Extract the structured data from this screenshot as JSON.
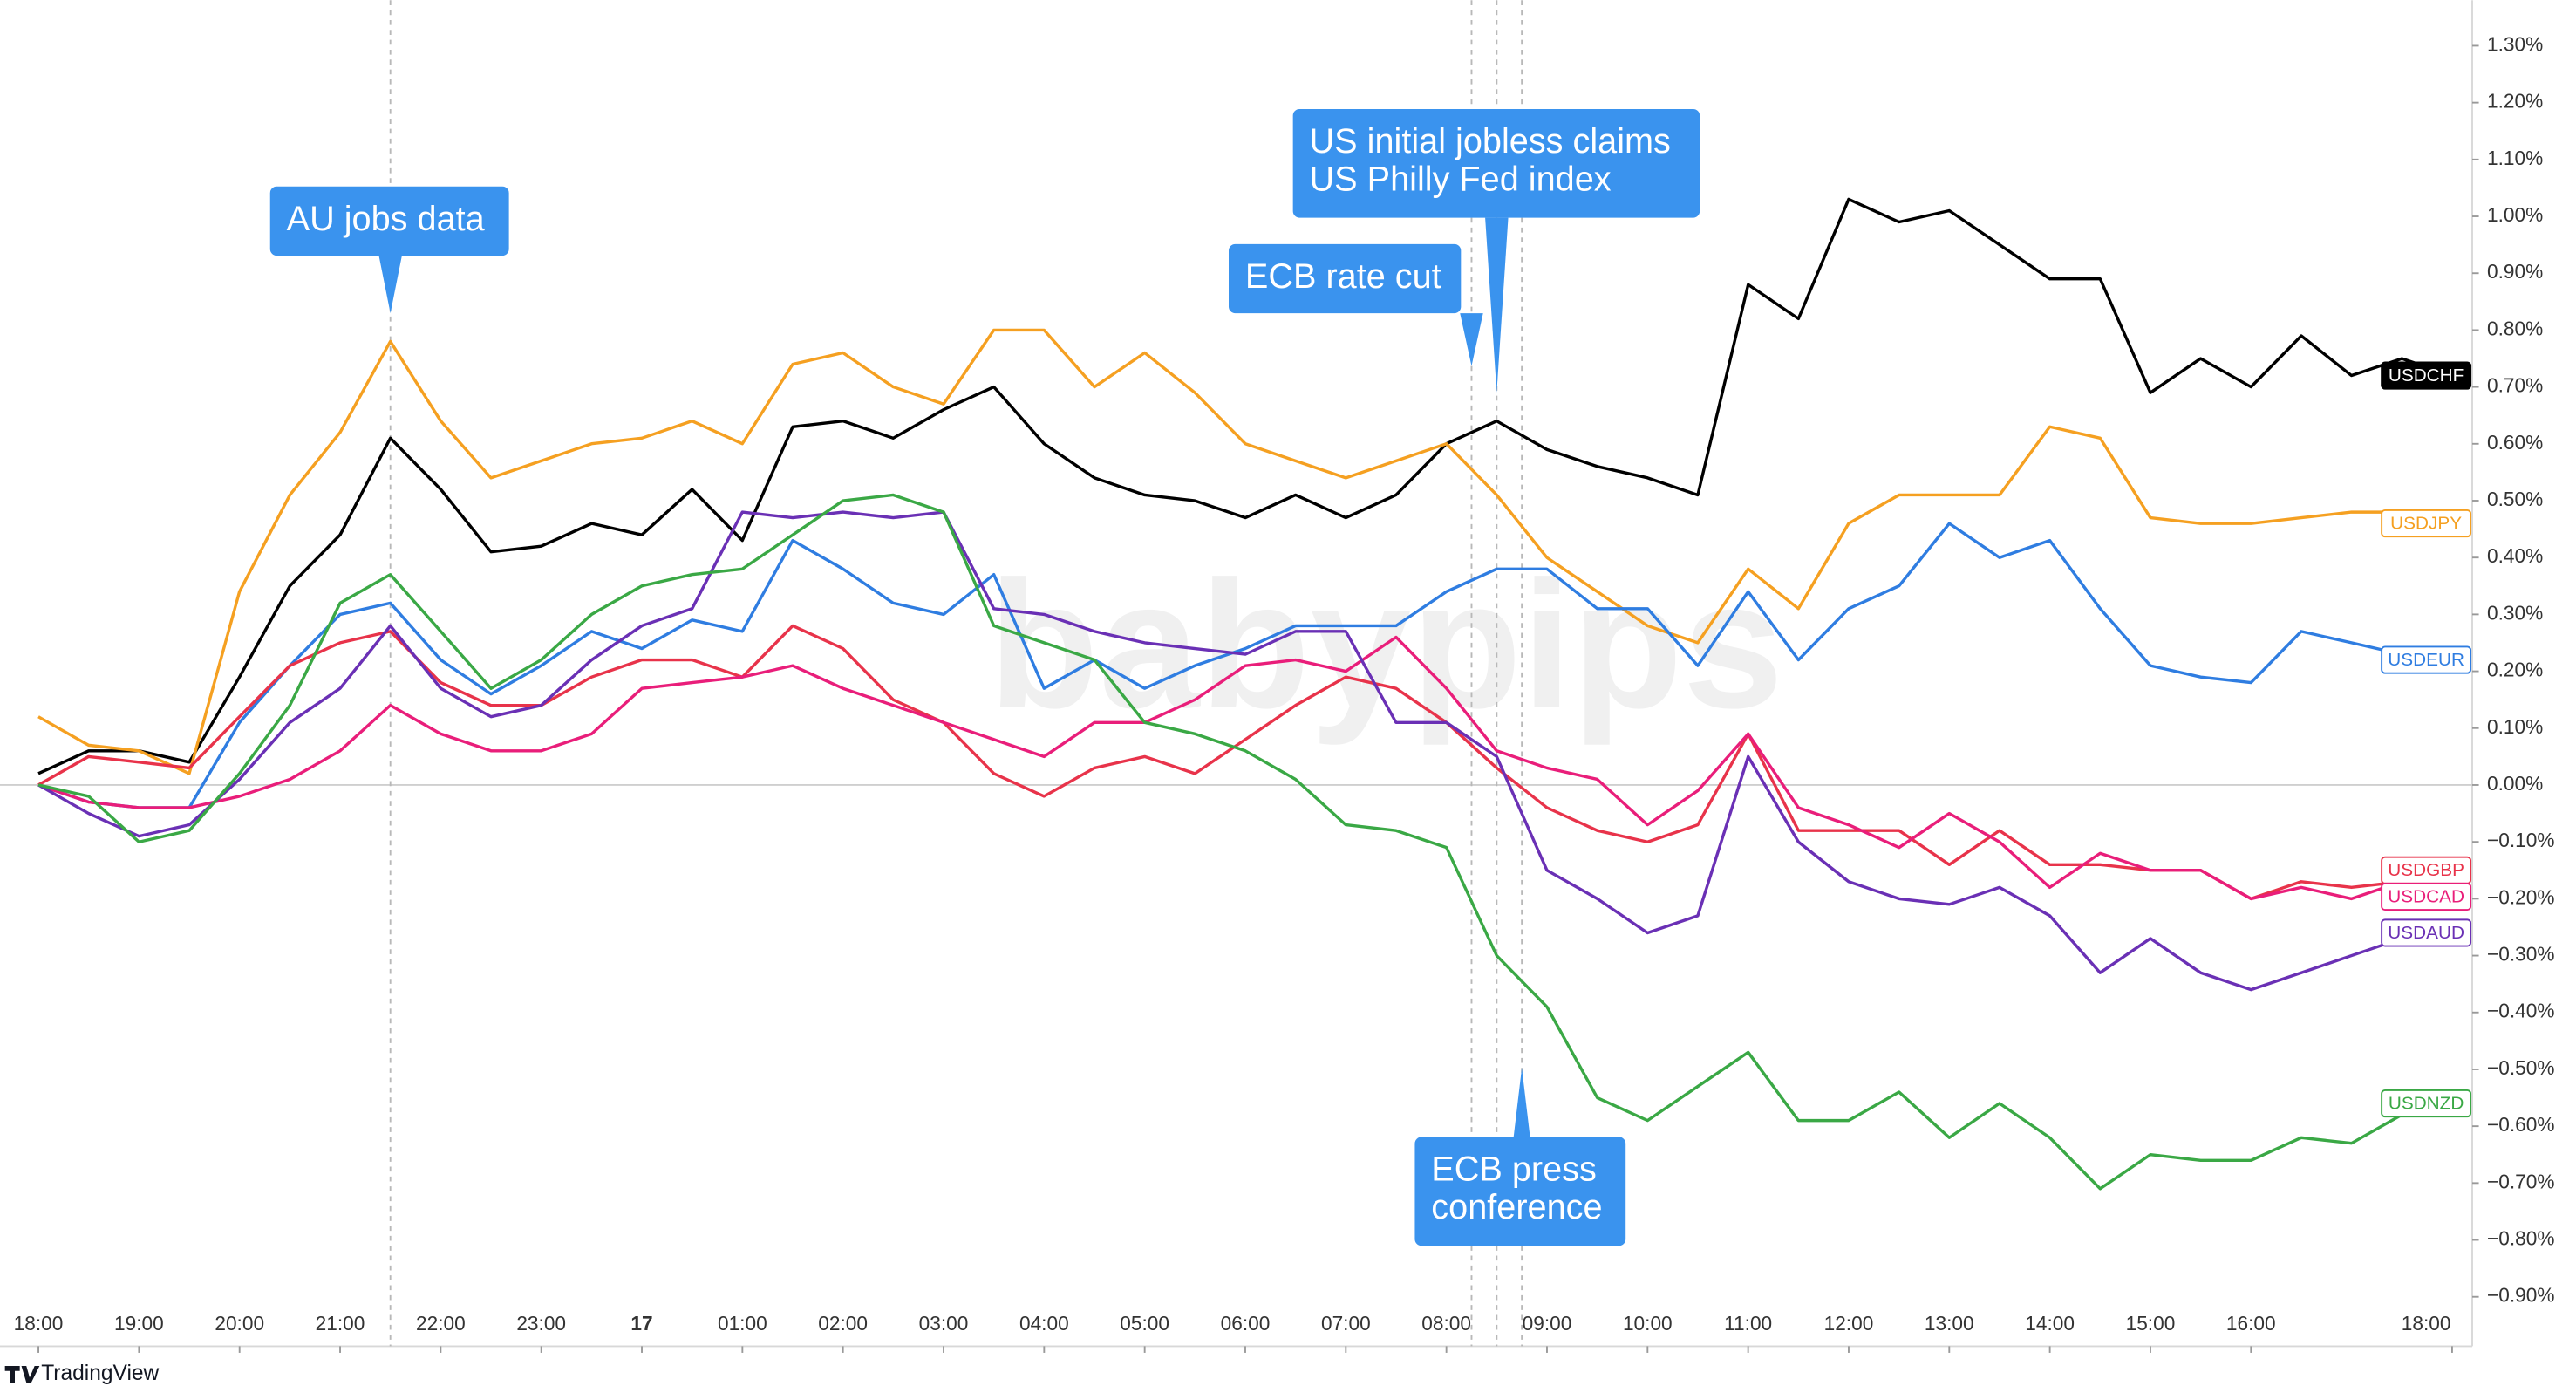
{
  "chart_data": {
    "type": "line",
    "watermark": "babypips",
    "brand": "TradingView",
    "x": [
      0,
      0.5,
      1,
      1.5,
      2,
      2.5,
      3,
      3.5,
      4,
      4.5,
      5,
      5.5,
      6,
      6.5,
      7,
      7.5,
      8,
      8.5,
      9,
      9.5,
      10,
      10.5,
      11,
      11.5,
      12,
      12.5,
      13,
      13.5,
      14,
      14.5,
      15,
      15.5,
      16,
      16.5,
      17,
      17.5,
      18,
      18.5,
      19,
      19.5,
      20,
      20.5,
      21,
      21.5,
      22,
      22.5,
      23,
      23.5,
      24
    ],
    "xlim": [
      -0.3,
      24.2
    ],
    "xticks": [
      {
        "value": 0,
        "label": "18:00"
      },
      {
        "value": 1,
        "label": "19:00"
      },
      {
        "value": 2,
        "label": "20:00"
      },
      {
        "value": 3,
        "label": "21:00"
      },
      {
        "value": 4,
        "label": "22:00"
      },
      {
        "value": 5,
        "label": "23:00"
      },
      {
        "value": 6,
        "label": "17"
      },
      {
        "value": 7,
        "label": "01:00"
      },
      {
        "value": 8,
        "label": "02:00"
      },
      {
        "value": 9,
        "label": "03:00"
      },
      {
        "value": 10,
        "label": "04:00"
      },
      {
        "value": 11,
        "label": "05:00"
      },
      {
        "value": 12,
        "label": "06:00"
      },
      {
        "value": 13,
        "label": "07:00"
      },
      {
        "value": 14,
        "label": "08:00"
      },
      {
        "value": 15,
        "label": "09:00"
      },
      {
        "value": 16,
        "label": "10:00"
      },
      {
        "value": 17,
        "label": "11:00"
      },
      {
        "value": 18,
        "label": "12:00"
      },
      {
        "value": 19,
        "label": "13:00"
      },
      {
        "value": 20,
        "label": "14:00"
      },
      {
        "value": 21,
        "label": "15:00"
      },
      {
        "value": 22,
        "label": "16:00"
      },
      {
        "value": 24,
        "label": "18:00"
      }
    ],
    "ylim": [
      -0.9,
      1.38
    ],
    "yticks": [
      {
        "value": -0.9,
        "label": "−0.90%"
      },
      {
        "value": -0.8,
        "label": "−0.80%"
      },
      {
        "value": -0.7,
        "label": "−0.70%"
      },
      {
        "value": -0.6,
        "label": "−0.60%"
      },
      {
        "value": -0.5,
        "label": "−0.50%"
      },
      {
        "value": -0.4,
        "label": "−0.40%"
      },
      {
        "value": -0.3,
        "label": "−0.30%"
      },
      {
        "value": -0.2,
        "label": "−0.20%"
      },
      {
        "value": -0.1,
        "label": "−0.10%"
      },
      {
        "value": 0,
        "label": "0.00%"
      },
      {
        "value": 0.1,
        "label": "0.10%"
      },
      {
        "value": 0.2,
        "label": "0.20%"
      },
      {
        "value": 0.3,
        "label": "0.30%"
      },
      {
        "value": 0.4,
        "label": "0.40%"
      },
      {
        "value": 0.5,
        "label": "0.50%"
      },
      {
        "value": 0.6,
        "label": "0.60%"
      },
      {
        "value": 0.7,
        "label": "0.70%"
      },
      {
        "value": 0.8,
        "label": "0.80%"
      },
      {
        "value": 0.9,
        "label": "0.90%"
      },
      {
        "value": 1.0,
        "label": "1.00%"
      },
      {
        "value": 1.1,
        "label": "1.10%"
      },
      {
        "value": 1.2,
        "label": "1.20%"
      },
      {
        "value": 1.3,
        "label": "1.30%"
      }
    ],
    "series": [
      {
        "name": "USDCHF",
        "color": "#000000",
        "values": [
          0.02,
          0.06,
          0.06,
          0.04,
          0.19,
          0.35,
          0.44,
          0.61,
          0.52,
          0.41,
          0.42,
          0.46,
          0.44,
          0.52,
          0.43,
          0.63,
          0.64,
          0.61,
          0.66,
          0.7,
          0.6,
          0.54,
          0.51,
          0.5,
          0.47,
          0.51,
          0.47,
          0.51,
          0.6,
          0.64,
          0.59,
          0.56,
          0.54,
          0.51,
          0.88,
          0.82,
          1.03,
          0.99,
          1.01,
          0.95,
          0.89,
          0.89,
          0.69,
          0.75,
          0.7,
          0.79,
          0.72,
          0.75,
          0.72
        ]
      },
      {
        "name": "USDJPY",
        "color": "#f5a021",
        "values": [
          0.12,
          0.07,
          0.06,
          0.02,
          0.34,
          0.51,
          0.62,
          0.78,
          0.64,
          0.54,
          0.57,
          0.6,
          0.61,
          0.64,
          0.6,
          0.74,
          0.76,
          0.7,
          0.67,
          0.8,
          0.8,
          0.7,
          0.76,
          0.69,
          0.6,
          0.57,
          0.54,
          0.57,
          0.6,
          0.51,
          0.4,
          0.34,
          0.28,
          0.25,
          0.38,
          0.31,
          0.46,
          0.51,
          0.51,
          0.51,
          0.63,
          0.61,
          0.47,
          0.46,
          0.46,
          0.47,
          0.48,
          0.48,
          0.46
        ]
      },
      {
        "name": "USDEUR",
        "color": "#2f7de1",
        "values": [
          0.0,
          -0.03,
          -0.04,
          -0.04,
          0.11,
          0.21,
          0.3,
          0.32,
          0.22,
          0.16,
          0.21,
          0.27,
          0.24,
          0.29,
          0.27,
          0.43,
          0.38,
          0.32,
          0.3,
          0.37,
          0.17,
          0.22,
          0.17,
          0.21,
          0.24,
          0.28,
          0.28,
          0.28,
          0.34,
          0.38,
          0.38,
          0.31,
          0.31,
          0.21,
          0.34,
          0.22,
          0.31,
          0.35,
          0.46,
          0.4,
          0.43,
          0.31,
          0.21,
          0.19,
          0.18,
          0.27,
          0.25,
          0.23,
          0.22
        ]
      },
      {
        "name": "USDGBP",
        "color": "#e8334a",
        "values": [
          0.0,
          0.05,
          0.04,
          0.03,
          0.12,
          0.21,
          0.25,
          0.27,
          0.18,
          0.14,
          0.14,
          0.19,
          0.22,
          0.22,
          0.19,
          0.28,
          0.24,
          0.15,
          0.11,
          0.02,
          -0.02,
          0.03,
          0.05,
          0.02,
          0.08,
          0.14,
          0.19,
          0.17,
          0.11,
          0.03,
          -0.04,
          -0.08,
          -0.1,
          -0.07,
          0.09,
          -0.08,
          -0.08,
          -0.08,
          -0.14,
          -0.08,
          -0.14,
          -0.14,
          -0.15,
          -0.15,
          -0.2,
          -0.17,
          -0.18,
          -0.17,
          -0.15
        ]
      },
      {
        "name": "USDCAD",
        "color": "#e91e7a",
        "values": [
          0.0,
          -0.03,
          -0.04,
          -0.04,
          -0.02,
          0.01,
          0.06,
          0.14,
          0.09,
          0.06,
          0.06,
          0.09,
          0.17,
          0.18,
          0.19,
          0.21,
          0.17,
          0.14,
          0.11,
          0.08,
          0.05,
          0.11,
          0.11,
          0.15,
          0.21,
          0.22,
          0.2,
          0.26,
          0.17,
          0.06,
          0.03,
          0.01,
          -0.07,
          -0.01,
          0.09,
          -0.04,
          -0.07,
          -0.11,
          -0.05,
          -0.1,
          -0.18,
          -0.12,
          -0.15,
          -0.15,
          -0.2,
          -0.18,
          -0.2,
          -0.17,
          -0.15
        ]
      },
      {
        "name": "USDAUD",
        "color": "#6a30b5",
        "values": [
          0.0,
          -0.05,
          -0.09,
          -0.07,
          0.01,
          0.11,
          0.17,
          0.28,
          0.17,
          0.12,
          0.14,
          0.22,
          0.28,
          0.31,
          0.48,
          0.47,
          0.48,
          0.47,
          0.48,
          0.31,
          0.3,
          0.27,
          0.25,
          0.24,
          0.23,
          0.27,
          0.27,
          0.11,
          0.11,
          0.05,
          -0.15,
          -0.2,
          -0.26,
          -0.23,
          0.05,
          -0.1,
          -0.17,
          -0.2,
          -0.21,
          -0.18,
          -0.23,
          -0.33,
          -0.27,
          -0.33,
          -0.36,
          -0.33,
          -0.3,
          -0.27,
          -0.26
        ]
      },
      {
        "name": "USDNZD",
        "color": "#3aa845",
        "values": [
          0.0,
          -0.02,
          -0.1,
          -0.08,
          0.02,
          0.14,
          0.32,
          0.37,
          0.27,
          0.17,
          0.22,
          0.3,
          0.35,
          0.37,
          0.38,
          0.44,
          0.5,
          0.51,
          0.48,
          0.28,
          0.25,
          0.22,
          0.11,
          0.09,
          0.06,
          0.01,
          -0.07,
          -0.08,
          -0.11,
          -0.3,
          -0.39,
          -0.55,
          -0.59,
          -0.53,
          -0.47,
          -0.59,
          -0.59,
          -0.54,
          -0.62,
          -0.56,
          -0.62,
          -0.71,
          -0.65,
          -0.66,
          -0.66,
          -0.62,
          -0.63,
          -0.58,
          -0.56
        ]
      }
    ],
    "annotations": [
      {
        "x": 3.5,
        "lines": [
          "AU jobs data"
        ]
      },
      {
        "x": 14.25,
        "lines": [
          "ECB rate cut"
        ]
      },
      {
        "x": 14.5,
        "lines": [
          "US initial jobless claims",
          "US Philly Fed index"
        ]
      },
      {
        "x": 14.75,
        "lines": [
          "ECB press",
          "conference"
        ]
      }
    ]
  }
}
